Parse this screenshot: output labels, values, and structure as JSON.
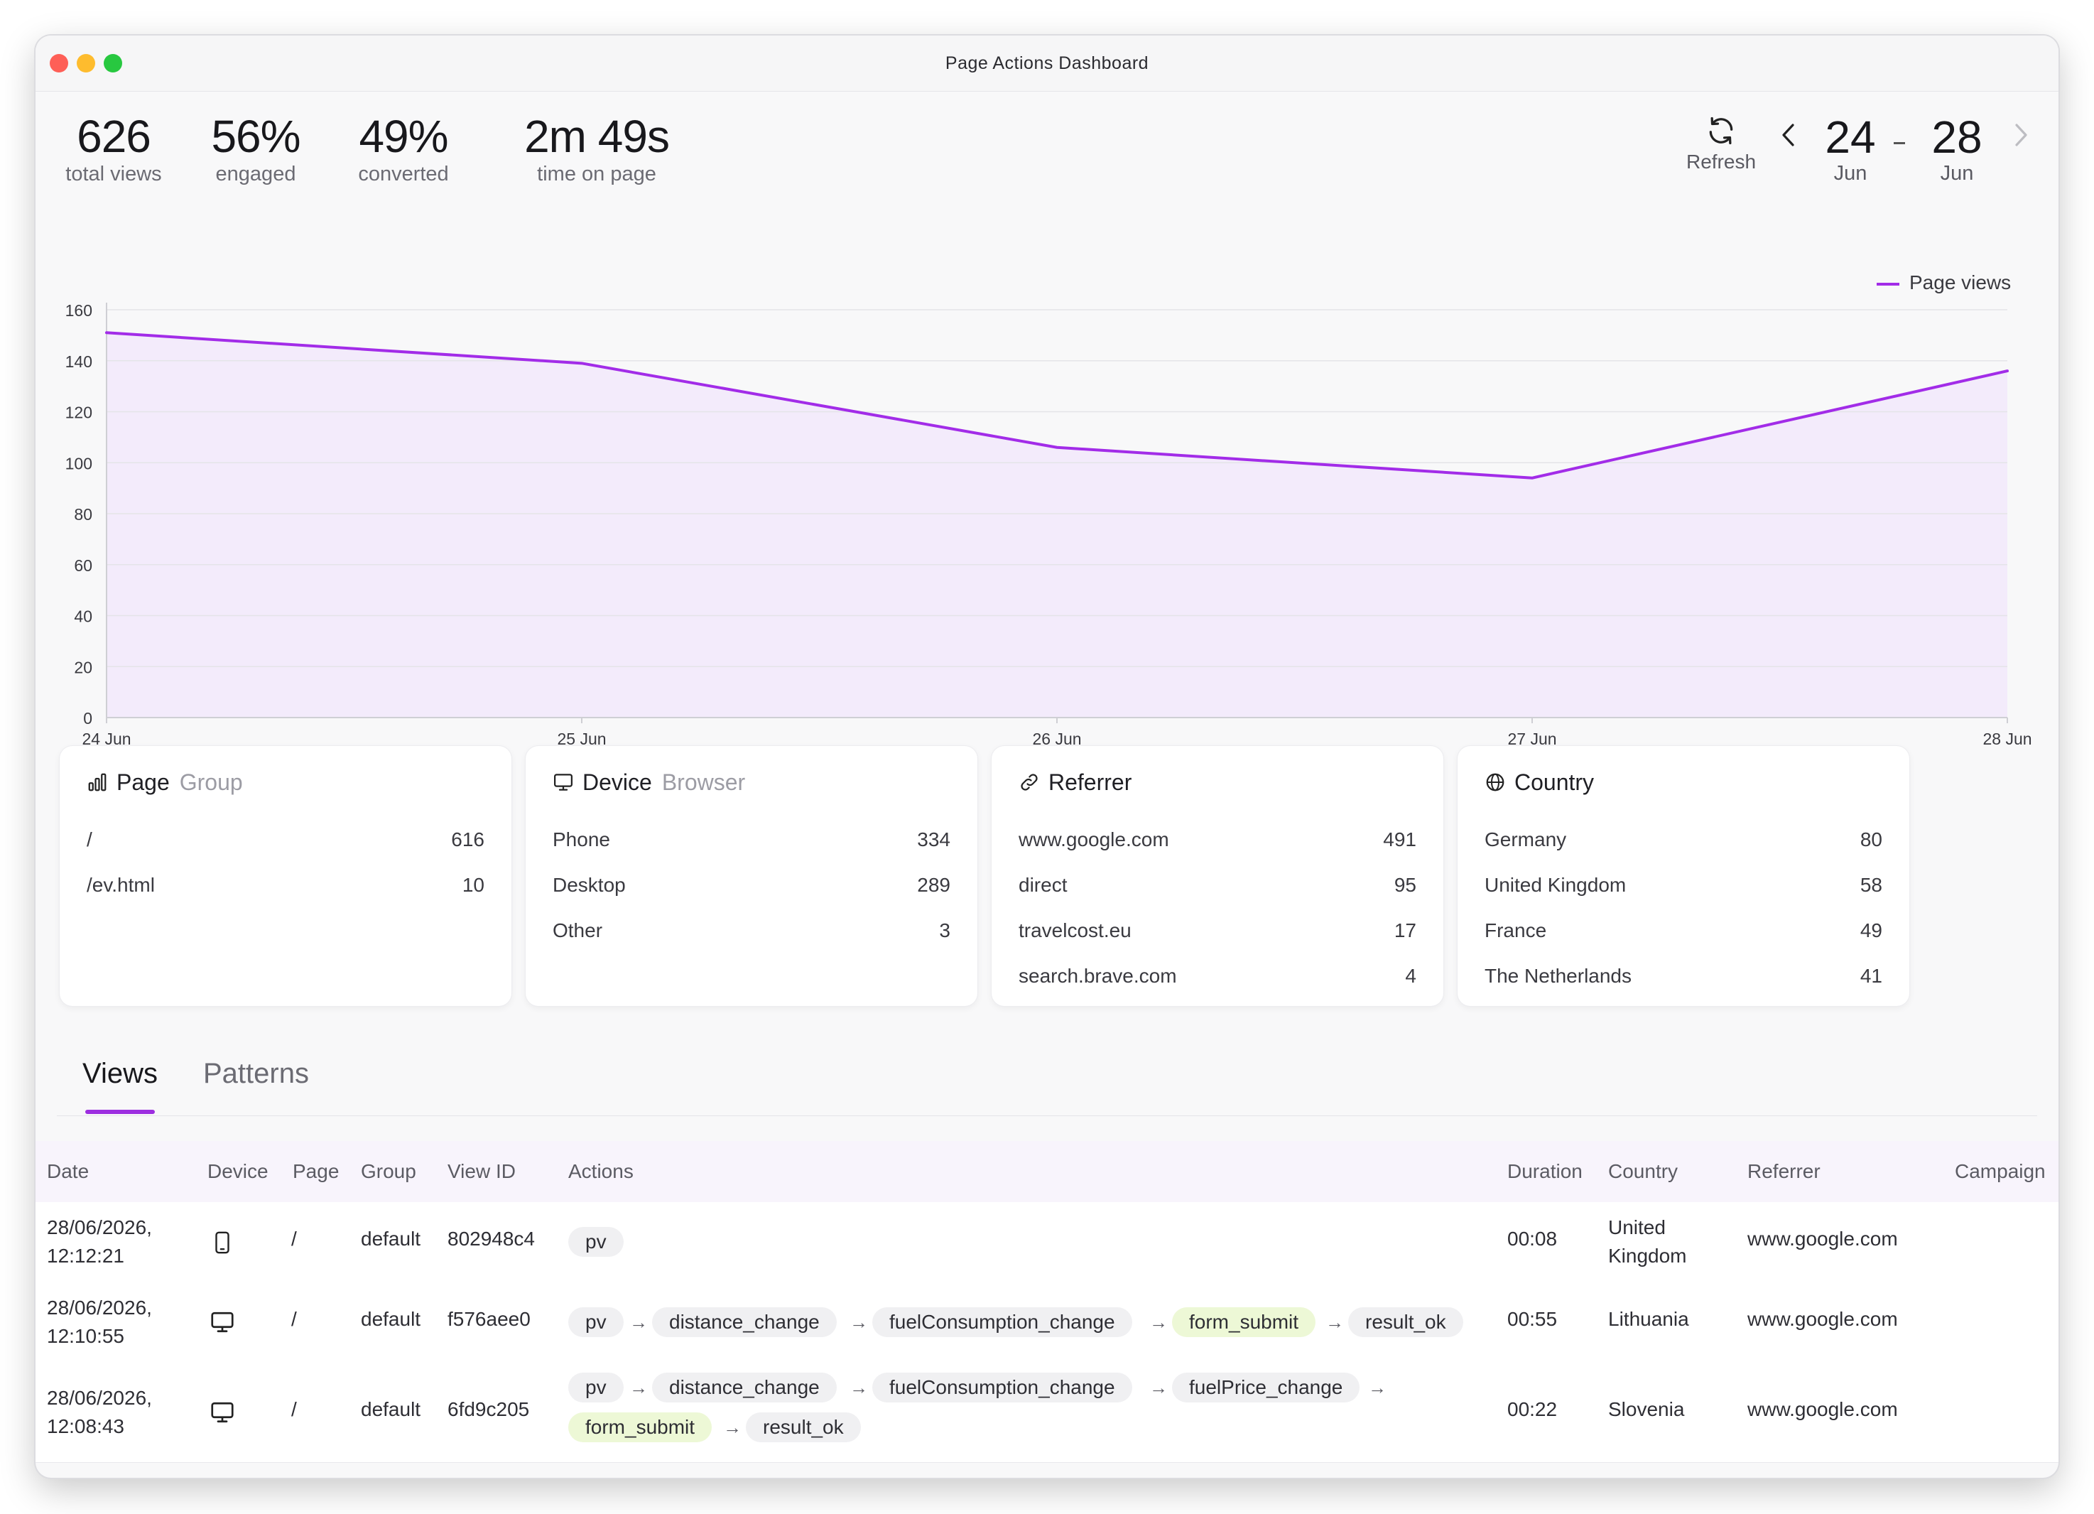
{
  "window": {
    "title": "Page Actions Dashboard"
  },
  "stats": [
    {
      "value": "626",
      "label": "total views"
    },
    {
      "value": "56%",
      "label": "engaged"
    },
    {
      "value": "49%",
      "label": "converted"
    },
    {
      "value": "2m 49s",
      "label": "time on page"
    }
  ],
  "controls": {
    "refresh_label": "Refresh",
    "from": {
      "day": "24",
      "month": "Jun"
    },
    "to": {
      "day": "28",
      "month": "Jun"
    }
  },
  "chart_data": {
    "type": "area",
    "x": [
      "24 Jun",
      "25 Jun",
      "26 Jun",
      "27 Jun",
      "28 Jun"
    ],
    "series": [
      {
        "name": "Page views",
        "values": [
          151,
          139,
          106,
          94,
          136
        ],
        "color": "#a22ce8"
      }
    ],
    "ylim": [
      0,
      160
    ],
    "yticks": [
      0,
      20,
      40,
      60,
      80,
      100,
      120,
      140,
      160
    ],
    "grid": true,
    "legend": "top-right"
  },
  "cards": [
    {
      "title": "Page",
      "subtitle": "Group",
      "icon": "bar-chart-icon",
      "rows": [
        {
          "label": "/",
          "value": "616"
        },
        {
          "label": "/ev.html",
          "value": "10"
        }
      ]
    },
    {
      "title": "Device",
      "subtitle": "Browser",
      "icon": "monitor-icon",
      "rows": [
        {
          "label": "Phone",
          "value": "334"
        },
        {
          "label": "Desktop",
          "value": "289"
        },
        {
          "label": "Other",
          "value": "3"
        }
      ]
    },
    {
      "title": "Referrer",
      "subtitle": "",
      "icon": "link-icon",
      "rows": [
        {
          "label": "www.google.com",
          "value": "491"
        },
        {
          "label": "direct",
          "value": "95"
        },
        {
          "label": "travelcost.eu",
          "value": "17"
        },
        {
          "label": "search.brave.com",
          "value": "4"
        }
      ]
    },
    {
      "title": "Country",
      "subtitle": "",
      "icon": "globe-icon",
      "rows": [
        {
          "label": "Germany",
          "value": "80"
        },
        {
          "label": "United Kingdom",
          "value": "58"
        },
        {
          "label": "France",
          "value": "49"
        },
        {
          "label": "The Netherlands",
          "value": "41"
        }
      ]
    }
  ],
  "tabs": [
    {
      "label": "Views",
      "active": true
    },
    {
      "label": "Patterns",
      "active": false
    }
  ],
  "table": {
    "headers": [
      "Date",
      "Device",
      "Page",
      "Group",
      "View ID",
      "Actions",
      "Duration",
      "Country",
      "Referrer",
      "Campaign"
    ],
    "rows": [
      {
        "date": "28/06/2026,",
        "time": "12:12:21",
        "device": "phone-icon",
        "page": "/",
        "group": "default",
        "view_id": "802948c4",
        "actions": [
          {
            "name": "pv",
            "highlight": false
          }
        ],
        "duration": "00:08",
        "country": "United Kingdom",
        "referrer": "www.google.com",
        "campaign": ""
      },
      {
        "date": "28/06/2026,",
        "time": "12:10:55",
        "device": "desktop-icon",
        "page": "/",
        "group": "default",
        "view_id": "f576aee0",
        "actions": [
          {
            "name": "pv",
            "highlight": false
          },
          {
            "name": "distance_change",
            "highlight": false
          },
          {
            "name": "fuelConsumption_change",
            "highlight": false
          },
          {
            "name": "form_submit",
            "highlight": true
          },
          {
            "name": "result_ok",
            "highlight": false
          }
        ],
        "duration": "00:55",
        "country": "Lithuania",
        "referrer": "www.google.com",
        "campaign": ""
      },
      {
        "date": "28/06/2026,",
        "time": "12:08:43",
        "device": "desktop-icon",
        "page": "/",
        "group": "default",
        "view_id": "6fd9c205",
        "actions": [
          {
            "name": "pv",
            "highlight": false
          },
          {
            "name": "distance_change",
            "highlight": false
          },
          {
            "name": "fuelConsumption_change",
            "highlight": false
          },
          {
            "name": "fuelPrice_change",
            "highlight": false
          },
          {
            "name": "form_submit",
            "highlight": true
          },
          {
            "name": "result_ok",
            "highlight": false
          }
        ],
        "duration": "00:22",
        "country": "Slovenia",
        "referrer": "www.google.com",
        "campaign": ""
      }
    ]
  }
}
